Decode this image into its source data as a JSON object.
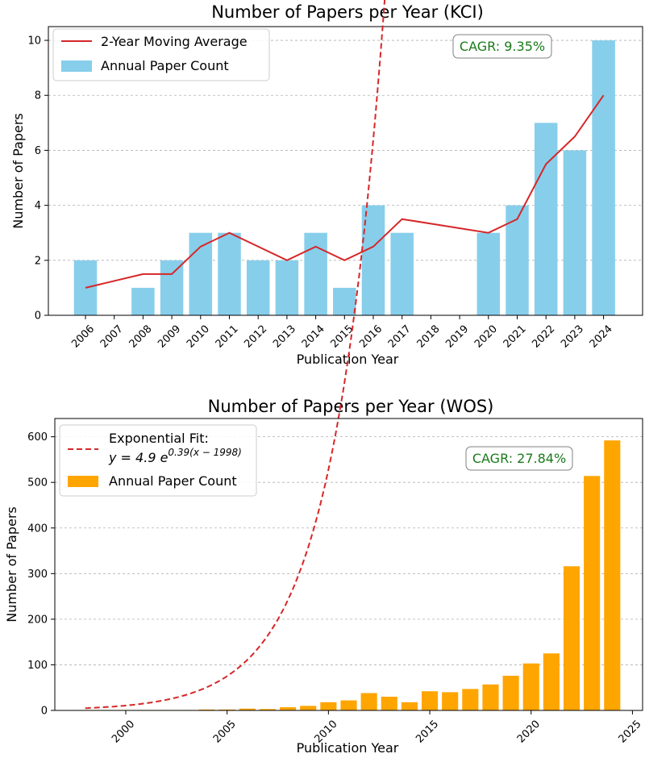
{
  "colors": {
    "kci_bar": "#87ceeb",
    "kci_line": "#d62728",
    "wos_bar": "#ffa500",
    "wos_fit": "#d62728",
    "cagr_text": "#1a7a1a"
  },
  "chart_data": [
    {
      "type": "bar",
      "title": "Number of Papers per Year (KCI)",
      "xlabel": "Publication Year",
      "ylabel": "Number of Papers",
      "categories": [
        "2006",
        "2007",
        "2008",
        "2009",
        "2010",
        "2011",
        "2012",
        "2013",
        "2014",
        "2015",
        "2016",
        "2017",
        "2018",
        "2019",
        "2020",
        "2021",
        "2022",
        "2023",
        "2024"
      ],
      "yticks": [
        "0",
        "2",
        "4",
        "6",
        "8",
        "10"
      ],
      "ylim": [
        0,
        10.5
      ],
      "grid": "y-dashed",
      "legend_position": "top-left",
      "series": [
        {
          "name": "Annual Paper Count",
          "kind": "bar",
          "values": [
            2,
            0,
            1,
            2,
            3,
            3,
            2,
            2,
            3,
            1,
            4,
            3,
            0,
            0,
            3,
            4,
            7,
            6,
            10
          ]
        },
        {
          "name": "2-Year Moving Average",
          "kind": "line",
          "x": [
            "2006",
            "2008",
            "2009",
            "2010",
            "2011",
            "2013",
            "2014",
            "2015",
            "2016",
            "2017",
            "2020",
            "2021",
            "2022",
            "2023",
            "2024"
          ],
          "values": [
            1,
            1.5,
            1.5,
            2.5,
            3,
            2,
            2.5,
            2,
            2.5,
            3.5,
            3,
            3.5,
            5.5,
            6.5,
            8
          ]
        }
      ],
      "annotation": "CAGR: 9.35%"
    },
    {
      "type": "bar",
      "title": "Number of Papers per Year (WOS)",
      "xlabel": "Publication Year",
      "ylabel": "Number of Papers",
      "xticks": [
        "2000",
        "2005",
        "2010",
        "2015",
        "2020",
        "2025"
      ],
      "yticks": [
        "0",
        "100",
        "200",
        "300",
        "400",
        "500",
        "600"
      ],
      "xlim": [
        1996.5,
        2025.5
      ],
      "ylim": [
        0,
        640
      ],
      "grid": "y-dashed",
      "legend_position": "top-left",
      "series": [
        {
          "name": "Annual Paper Count",
          "kind": "bar",
          "x": [
            1998,
            1999,
            2000,
            2001,
            2002,
            2003,
            2004,
            2005,
            2006,
            2007,
            2008,
            2009,
            2010,
            2011,
            2012,
            2013,
            2014,
            2015,
            2016,
            2017,
            2018,
            2019,
            2020,
            2021,
            2022,
            2023,
            2024
          ],
          "values": [
            1,
            1,
            1,
            1,
            1,
            1,
            2,
            2,
            4,
            3,
            7,
            10,
            18,
            22,
            38,
            30,
            18,
            42,
            40,
            47,
            57,
            76,
            103,
            125,
            316,
            514,
            592
          ]
        },
        {
          "name": "Exponential Fit:",
          "kind": "fit",
          "equation": "y = 4.9 e^{0.39(x − 1998)}",
          "eq_prefix": "y = 4.9 e",
          "eq_exponent": "0.39(x − 1998)",
          "a": 4.9,
          "b": 0.39,
          "x0": 1998,
          "x_range": [
            1998,
            2024
          ]
        }
      ],
      "annotation": "CAGR: 27.84%"
    }
  ]
}
